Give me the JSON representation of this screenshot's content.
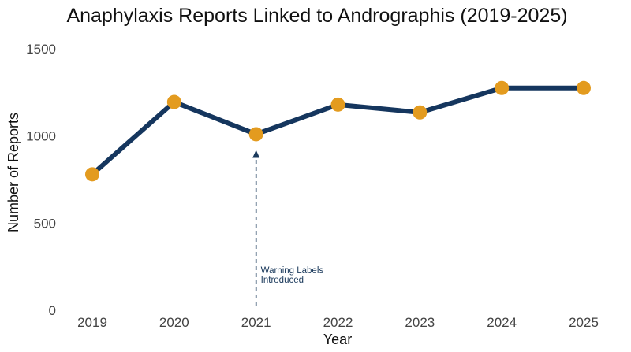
{
  "chart_data": {
    "type": "line",
    "title": "Anaphylaxis Reports Linked to Andrographis (2019-2025)",
    "xlabel": "Year",
    "ylabel": "Number of Reports",
    "categories": [
      "2019",
      "2020",
      "2021",
      "2022",
      "2023",
      "2024",
      "2025"
    ],
    "values": [
      780,
      1195,
      1010,
      1180,
      1135,
      1275,
      1275
    ],
    "ylim": [
      0,
      1500
    ],
    "yticks": [
      "0",
      "500",
      "1000",
      "1500"
    ],
    "grid": false,
    "line_color": "#15365e",
    "marker_color": "#e39b1f",
    "annotation": {
      "x": "2021",
      "line1": "Warning Labels",
      "line2": "Introduced",
      "color": "#1b3a5c"
    }
  }
}
